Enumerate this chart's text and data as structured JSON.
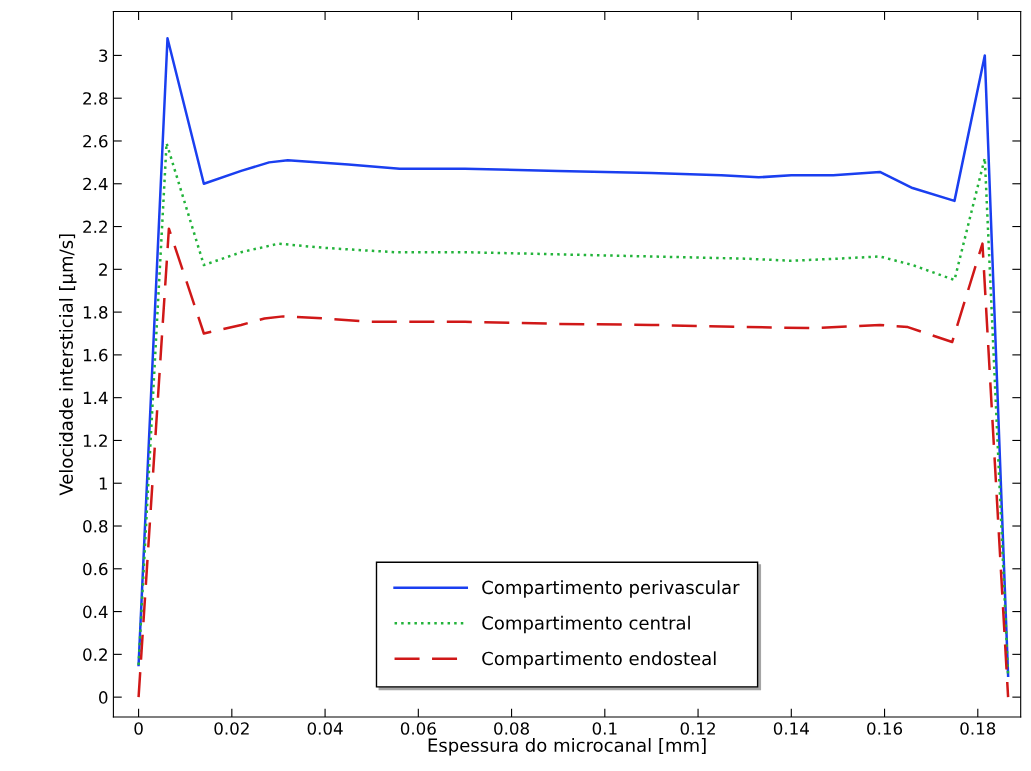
{
  "chart_data": {
    "type": "line",
    "xlabel": "Espessura do microcanal [mm]",
    "ylabel": "Velocidade intersticial [μm/s]",
    "xlim": [
      -0.0054,
      0.1892
    ],
    "ylim": [
      -0.093,
      3.205
    ],
    "xticks": [
      0,
      0.02,
      0.04,
      0.06,
      0.08,
      0.1,
      0.12,
      0.14,
      0.16,
      0.18
    ],
    "yticks": [
      0,
      0.2,
      0.4,
      0.6,
      0.8,
      1,
      1.2,
      1.4,
      1.6,
      1.8,
      2,
      2.2,
      2.4,
      2.6,
      2.8,
      3
    ],
    "grid": false,
    "legend": "bottom",
    "marker": "none",
    "series": [
      {
        "name": "Compartimento perivascular",
        "color": "#1a3ff0",
        "line_style": "solid",
        "x": [
          0,
          0.0062,
          0.014,
          0.022,
          0.028,
          0.032,
          0.045,
          0.056,
          0.07,
          0.09,
          0.11,
          0.125,
          0.133,
          0.14,
          0.149,
          0.159,
          0.166,
          0.175,
          0.1815,
          0.1865
        ],
        "values": [
          0.15,
          3.08,
          2.4,
          2.46,
          2.5,
          2.51,
          2.49,
          2.47,
          2.47,
          2.46,
          2.45,
          2.44,
          2.43,
          2.44,
          2.44,
          2.455,
          2.38,
          2.32,
          3.0,
          0.1
        ]
      },
      {
        "name": "Compartimento central",
        "color": "#22b33a",
        "line_style": "dotted",
        "x": [
          0,
          0.006,
          0.014,
          0.022,
          0.03,
          0.04,
          0.055,
          0.07,
          0.09,
          0.11,
          0.13,
          0.14,
          0.15,
          0.159,
          0.166,
          0.175,
          0.1815,
          0.1865
        ],
        "values": [
          0.15,
          2.59,
          2.02,
          2.08,
          2.12,
          2.1,
          2.08,
          2.08,
          2.07,
          2.06,
          2.05,
          2.04,
          2.05,
          2.06,
          2.02,
          1.95,
          2.52,
          0.1
        ]
      },
      {
        "name": "Compartimento endosteal",
        "color": "#d01818",
        "line_style": "dashed",
        "x": [
          0,
          0.0065,
          0.014,
          0.022,
          0.027,
          0.031,
          0.04,
          0.05,
          0.07,
          0.09,
          0.11,
          0.13,
          0.145,
          0.159,
          0.165,
          0.1745,
          0.181,
          0.1865
        ],
        "values": [
          0,
          2.19,
          1.7,
          1.74,
          1.77,
          1.78,
          1.77,
          1.755,
          1.755,
          1.745,
          1.74,
          1.73,
          1.725,
          1.74,
          1.73,
          1.66,
          2.12,
          0
        ]
      }
    ]
  }
}
